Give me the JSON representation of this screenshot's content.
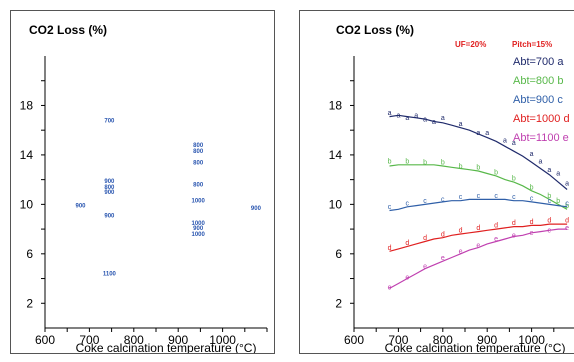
{
  "chart_data": [
    {
      "type": "scatter",
      "title": "CO2 Loss (%)",
      "xlabel": "Coke calcination temperature (°C)",
      "xlim": [
        600,
        1100
      ],
      "ylim": [
        0,
        22
      ],
      "x_ticks": [
        600,
        700,
        800,
        900,
        1000
      ],
      "y_ticks": [
        2,
        6,
        10,
        14,
        18
      ],
      "grid": false,
      "points": [
        {
          "x": 680,
          "y": 9.9,
          "label": "900"
        },
        {
          "x": 745,
          "y": 16.8,
          "label": "700"
        },
        {
          "x": 745,
          "y": 11.9,
          "label": "900"
        },
        {
          "x": 745,
          "y": 11.4,
          "label": "800"
        },
        {
          "x": 745,
          "y": 11.0,
          "label": "900"
        },
        {
          "x": 745,
          "y": 9.1,
          "label": "900"
        },
        {
          "x": 745,
          "y": 4.4,
          "label": "1100"
        },
        {
          "x": 945,
          "y": 14.8,
          "label": "800"
        },
        {
          "x": 945,
          "y": 14.3,
          "label": "800"
        },
        {
          "x": 945,
          "y": 13.4,
          "label": "800"
        },
        {
          "x": 945,
          "y": 11.6,
          "label": "800"
        },
        {
          "x": 945,
          "y": 10.3,
          "label": "1000"
        },
        {
          "x": 945,
          "y": 8.5,
          "label": "1000"
        },
        {
          "x": 945,
          "y": 8.1,
          "label": "900"
        },
        {
          "x": 945,
          "y": 7.6,
          "label": "1000"
        },
        {
          "x": 1075,
          "y": 9.7,
          "label": "900"
        }
      ]
    },
    {
      "type": "line",
      "title": "CO2 Loss (%)",
      "xlabel": "Coke calcination temperature (°C)",
      "xlim": [
        600,
        1100
      ],
      "ylim": [
        0,
        22
      ],
      "x_ticks": [
        600,
        700,
        800,
        900,
        1000
      ],
      "y_ticks": [
        2,
        6,
        10,
        14,
        18
      ],
      "grid": false,
      "parameters": [
        "UF=20%",
        "Pitch=15%"
      ],
      "legend_position": "top-right",
      "series": [
        {
          "name": "Abt=700 a",
          "marker": "a",
          "color": "#1f2a6b",
          "x": [
            680,
            700,
            720,
            740,
            760,
            780,
            800,
            820,
            840,
            860,
            880,
            900,
            920,
            940,
            960,
            980,
            1000,
            1020,
            1040,
            1060,
            1080
          ],
          "y": [
            17.1,
            17.2,
            17.1,
            17.0,
            16.9,
            16.7,
            16.6,
            16.4,
            16.2,
            16.0,
            15.7,
            15.4,
            15.1,
            14.7,
            14.3,
            13.9,
            13.4,
            12.9,
            12.4,
            11.8,
            11.2
          ],
          "points_x": [
            680,
            700,
            720,
            740,
            760,
            780,
            800,
            840,
            880,
            900,
            940,
            960,
            1000,
            1020,
            1040,
            1060,
            1080
          ],
          "points_y": [
            17.3,
            17.1,
            16.9,
            17.1,
            16.8,
            16.6,
            16.9,
            16.4,
            15.7,
            15.7,
            15.1,
            14.9,
            14.0,
            13.4,
            12.7,
            12.4,
            11.6
          ]
        },
        {
          "name": "Abt=800 b",
          "marker": "b",
          "color": "#58b84a",
          "x": [
            680,
            700,
            720,
            740,
            760,
            780,
            800,
            820,
            840,
            860,
            880,
            900,
            920,
            940,
            960,
            980,
            1000,
            1020,
            1040,
            1060,
            1080
          ],
          "y": [
            13.1,
            13.2,
            13.2,
            13.2,
            13.2,
            13.2,
            13.1,
            13.0,
            12.9,
            12.8,
            12.7,
            12.5,
            12.3,
            12.0,
            11.8,
            11.5,
            11.1,
            10.8,
            10.4,
            10.0,
            9.6
          ],
          "points_x": [
            680,
            720,
            760,
            800,
            840,
            880,
            920,
            960,
            1000,
            1040,
            1060,
            1080
          ],
          "points_y": [
            13.4,
            13.4,
            13.3,
            13.3,
            13.0,
            12.9,
            12.5,
            12.0,
            11.3,
            10.6,
            10.2,
            9.8
          ]
        },
        {
          "name": "Abt=900 c",
          "marker": "c",
          "color": "#2f5fa8",
          "x": [
            680,
            700,
            720,
            740,
            760,
            780,
            800,
            820,
            840,
            860,
            880,
            900,
            920,
            940,
            960,
            980,
            1000,
            1020,
            1040,
            1060,
            1080
          ],
          "y": [
            9.5,
            9.6,
            9.8,
            9.9,
            10.0,
            10.1,
            10.2,
            10.3,
            10.3,
            10.4,
            10.4,
            10.4,
            10.4,
            10.4,
            10.3,
            10.3,
            10.2,
            10.1,
            10.0,
            9.9,
            9.8
          ],
          "points_x": [
            680,
            720,
            760,
            800,
            840,
            880,
            920,
            960,
            1000,
            1040,
            1080
          ],
          "points_y": [
            9.7,
            10.0,
            10.2,
            10.3,
            10.5,
            10.6,
            10.6,
            10.5,
            10.4,
            10.2,
            10.0
          ]
        },
        {
          "name": "Abt=1000 d",
          "marker": "d",
          "color": "#e02020",
          "x": [
            680,
            700,
            720,
            740,
            760,
            780,
            800,
            820,
            840,
            860,
            880,
            900,
            920,
            940,
            960,
            980,
            1000,
            1020,
            1040,
            1060,
            1080
          ],
          "y": [
            6.2,
            6.4,
            6.6,
            6.8,
            7.0,
            7.2,
            7.3,
            7.5,
            7.6,
            7.7,
            7.8,
            7.9,
            8.0,
            8.1,
            8.2,
            8.2,
            8.3,
            8.3,
            8.4,
            8.4,
            8.4
          ],
          "points_x": [
            680,
            720,
            760,
            800,
            840,
            880,
            920,
            960,
            1000,
            1040,
            1080
          ],
          "points_y": [
            6.4,
            6.8,
            7.2,
            7.5,
            7.8,
            8.0,
            8.2,
            8.4,
            8.5,
            8.6,
            8.6
          ]
        },
        {
          "name": "Abt=1100 e",
          "marker": "e",
          "color": "#c040b0",
          "x": [
            680,
            700,
            720,
            740,
            760,
            780,
            800,
            820,
            840,
            860,
            880,
            900,
            920,
            940,
            960,
            980,
            1000,
            1020,
            1040,
            1060,
            1080
          ],
          "y": [
            3.2,
            3.6,
            4.0,
            4.4,
            4.8,
            5.1,
            5.4,
            5.7,
            6.0,
            6.3,
            6.5,
            6.8,
            7.0,
            7.2,
            7.4,
            7.5,
            7.7,
            7.8,
            7.9,
            8.0,
            8.0
          ],
          "points_x": [
            680,
            720,
            760,
            800,
            840,
            880,
            920,
            960,
            1000,
            1040,
            1080
          ],
          "points_y": [
            3.2,
            4.0,
            4.9,
            5.6,
            6.1,
            6.6,
            7.1,
            7.4,
            7.6,
            7.8,
            8.0
          ]
        }
      ]
    }
  ]
}
